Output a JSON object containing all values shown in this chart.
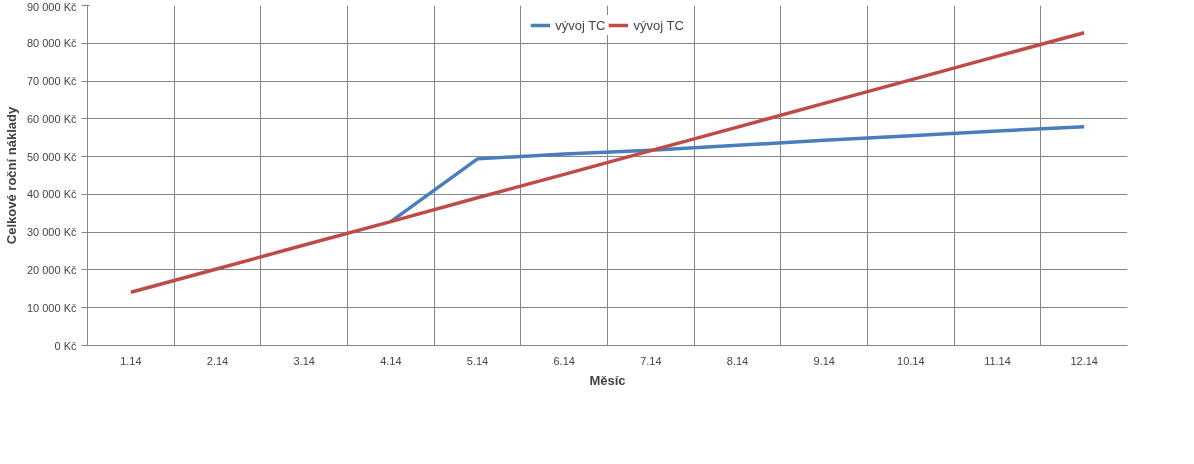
{
  "chart_data": {
    "type": "line",
    "xlabel": "Měsíc",
    "ylabel": "Celkové roční náklady",
    "categories": [
      "1.14",
      "2.14",
      "3.14",
      "4.14",
      "5.14",
      "6.14",
      "7.14",
      "8.14",
      "9.14",
      "10.14",
      "11.14",
      "12.14"
    ],
    "series": [
      {
        "name": "vývoj TC",
        "color": "#4a7ebb",
        "values": [
          null,
          null,
          null,
          32800,
          49400,
          50700,
          51700,
          53000,
          54300,
          55500,
          56800,
          57900
        ]
      },
      {
        "name": "vývoj TC",
        "color": "#be4b48",
        "values": [
          14100,
          20300,
          26600,
          32800,
          39100,
          45300,
          51600,
          57800,
          64100,
          70300,
          76600,
          82800
        ]
      }
    ],
    "ylim": [
      0,
      90000
    ],
    "yticks": [
      {
        "value": 0,
        "label": "0 Kč"
      },
      {
        "value": 10000,
        "label": "10 000 Kč"
      },
      {
        "value": 20000,
        "label": "20 000 Kč"
      },
      {
        "value": 30000,
        "label": "30 000 Kč"
      },
      {
        "value": 40000,
        "label": "40 000 Kč"
      },
      {
        "value": 50000,
        "label": "50 000 Kč"
      },
      {
        "value": 60000,
        "label": "60 000 Kč"
      },
      {
        "value": 70000,
        "label": "70 000 Kč"
      },
      {
        "value": 80000,
        "label": "80 000 Kč"
      },
      {
        "value": 90000,
        "label": "90 000 Kč"
      }
    ],
    "grid": true,
    "legend": "top",
    "marker": "none",
    "line_style": "solid"
  }
}
